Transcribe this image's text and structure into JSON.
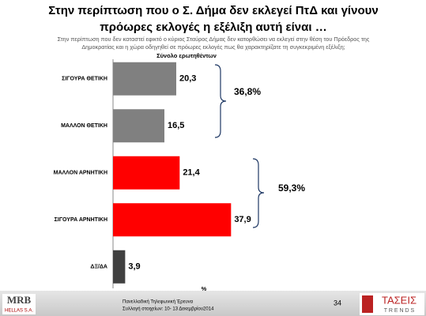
{
  "chart_data": {
    "type": "bar",
    "orientation": "horizontal",
    "title": [
      "Στην περίπτωση που ο Σ. Δήμα δεν εκλεγεί ΠτΔ και γίνουν",
      "πρόωρες εκλογές η εξέλιξη αυτή είναι …"
    ],
    "subtitle": [
      "Στην περίπτωση που δεν καταστεί εφικτό ο κύριος Σταύρος Δήμας δεν κατορθώσει να εκλεγεί στην θέση του Πρόεδρος της",
      "Δημοκρατίας και η χώρα οδηγηθεί σε πρόωρες εκλογές πως θα χαρακτηρίζατε τη συγκεκριμένη εξέλιξη;"
    ],
    "group_label": "Σύνολο ερωτηθέντων",
    "x_label": "%",
    "categories": [
      "ΣΙΓΟΥΡΑ ΘΕΤΙΚΗ",
      "ΜΑΛΛΟΝ ΘΕΤΙΚΗ",
      "ΜΑΛΛΟΝ ΑΡΝΗΤΙΚΗ",
      "ΣΙΓΟΥΡΑ ΑΡΝΗΤΙΚΗ",
      "ΔΞ/ΔΑ"
    ],
    "values": [
      20.3,
      16.5,
      21.4,
      37.9,
      3.9
    ],
    "value_labels": [
      "20,3",
      "16,5",
      "21,4",
      "37,9",
      "3,9"
    ],
    "colors": [
      "#808080",
      "#808080",
      "#ff0000",
      "#ff0000",
      "#404040"
    ],
    "xlim": [
      0,
      50
    ],
    "annotations": [
      "36,8%",
      "59,3%"
    ]
  },
  "footer": {
    "survey": "Πανελλαδική Τηλεφωνική Έρευνα",
    "dates": "Συλλογή στοιχείων: 10- 13 Δεκεμβρίου2014",
    "page": "34",
    "logo_left": "MRB",
    "logo_left_sub": "HELLAS S.A.",
    "logo_right": "ΤΑΣΕΙΣ",
    "logo_right_sub": "T R E N D S"
  }
}
